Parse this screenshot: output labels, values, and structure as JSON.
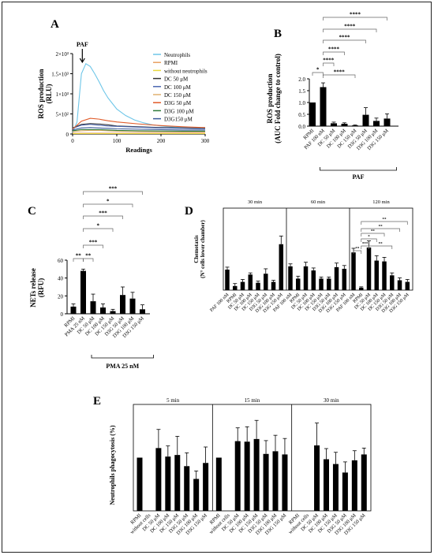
{
  "chart_data": [
    {
      "panel": "A",
      "type": "line",
      "ylabel": "ROS production\n(RLU)",
      "xlabel": "Readings",
      "xlim": [
        0,
        300
      ],
      "ylim": [
        0,
        2000
      ],
      "xticks": [
        0,
        100,
        200,
        300
      ],
      "yticks": [
        {
          "v": 0,
          "t": "0"
        },
        {
          "v": 500,
          "t": "5×10²"
        },
        {
          "v": 1000,
          "t": "1×10³"
        },
        {
          "v": 1500,
          "t": "1.5×10³"
        },
        {
          "v": 2000,
          "t": "2×10³"
        }
      ],
      "annotation": "PAF",
      "legend_position": "right",
      "series": [
        {
          "name": "Neutrophils",
          "color": "#6ec6e8",
          "x": [
            0,
            10,
            20,
            30,
            40,
            50,
            60,
            70,
            80,
            90,
            100,
            120,
            140,
            160,
            180,
            200,
            220,
            240,
            260,
            280,
            300
          ],
          "y": [
            40,
            300,
            1500,
            1750,
            1680,
            1500,
            1300,
            1080,
            900,
            760,
            620,
            460,
            350,
            280,
            230,
            200,
            180,
            165,
            160,
            155,
            150
          ]
        },
        {
          "name": "RPMI",
          "color": "#e8a060",
          "x": [
            0,
            100,
            200,
            300
          ],
          "y": [
            20,
            20,
            20,
            20
          ]
        },
        {
          "name": "without neutrophils",
          "color": "#e8d840",
          "x": [
            0,
            100,
            200,
            300
          ],
          "y": [
            10,
            10,
            10,
            10
          ]
        },
        {
          "name": "DC 50 μM",
          "color": "#333333",
          "x": [
            0,
            20,
            40,
            60,
            80,
            100,
            150,
            200,
            250,
            300
          ],
          "y": [
            150,
            240,
            260,
            250,
            230,
            200,
            180,
            160,
            150,
            140
          ]
        },
        {
          "name": "DC 100 μM",
          "color": "#4a66b0",
          "x": [
            0,
            20,
            40,
            60,
            80,
            100,
            150,
            200,
            250,
            300
          ],
          "y": [
            140,
            220,
            240,
            220,
            200,
            190,
            170,
            150,
            140,
            130
          ]
        },
        {
          "name": "DC 150 μM",
          "color": "#e0b070",
          "x": [
            0,
            20,
            40,
            60,
            80,
            100,
            150,
            200,
            250,
            300
          ],
          "y": [
            60,
            80,
            90,
            90,
            80,
            70,
            60,
            55,
            50,
            50
          ]
        },
        {
          "name": "D3G 50 μM",
          "color": "#e05a28",
          "x": [
            0,
            20,
            40,
            60,
            80,
            100,
            150,
            200,
            250,
            300
          ],
          "y": [
            120,
            320,
            390,
            370,
            330,
            300,
            250,
            210,
            180,
            160
          ]
        },
        {
          "name": "D3G 100 μM",
          "color": "#2e7a3a",
          "x": [
            0,
            20,
            40,
            60,
            80,
            100,
            150,
            200,
            250,
            300
          ],
          "y": [
            80,
            110,
            110,
            110,
            100,
            90,
            80,
            75,
            70,
            70
          ]
        },
        {
          "name": "D3G150 μM",
          "color": "#3a5a9a",
          "x": [
            0,
            20,
            40,
            60,
            80,
            100,
            150,
            200,
            250,
            300
          ],
          "y": [
            100,
            150,
            160,
            150,
            140,
            130,
            120,
            110,
            100,
            100
          ]
        }
      ]
    },
    {
      "panel": "B",
      "type": "bar",
      "ylabel": "ROS production\n(AUC Fold change to control)",
      "ylim": [
        0,
        2.0
      ],
      "yticks": [
        "0.0",
        "0.5",
        "1.0",
        "1.5",
        "2.0"
      ],
      "categories": [
        "RPMI",
        "PAF 100 nM",
        "DC 50 μM",
        "DC 100 μM",
        "DC 150 μM",
        "D3G 50 μM",
        "D3G 100 μM",
        "D3G 150 μM"
      ],
      "values": [
        1.0,
        1.65,
        0.12,
        0.1,
        0.03,
        0.48,
        0.22,
        0.32
      ],
      "errors": [
        0.0,
        0.18,
        0.05,
        0.04,
        0.02,
        0.3,
        0.12,
        0.2
      ],
      "group_label": "PAF",
      "significance": [
        "*",
        "****",
        "****",
        "****",
        "****",
        "****",
        "****"
      ]
    },
    {
      "panel": "C",
      "type": "bar",
      "ylabel": "NETs release\n(RFU)",
      "ylim": [
        0,
        60
      ],
      "yticks": [
        "0",
        "20",
        "40",
        "60"
      ],
      "categories": [
        "RPMI",
        "PMA 25 nM",
        "DC 50 μM",
        "DC 100 μM",
        "DC 150 μM",
        "D3G 50 μM",
        "D3G 100 μM",
        "D3G 150 μM"
      ],
      "values": [
        8,
        48,
        14,
        7,
        3,
        21,
        17,
        5
      ],
      "errors": [
        3,
        2,
        8,
        4,
        2,
        9,
        7,
        5
      ],
      "group_label": "PMA 25 nM",
      "significance": [
        "**",
        "**",
        "***",
        "*",
        "***",
        "*",
        "***"
      ]
    },
    {
      "panel": "D",
      "type": "bar",
      "ylabel": "Chemotaxis\n(N° cells lower chamber)",
      "ylim": [
        0,
        100
      ],
      "groups": [
        "30 min",
        "60 min",
        "120 min"
      ],
      "categories": [
        "PAF 100 nM",
        "RPMI",
        "DC 50 μM",
        "DC 100 μM",
        "DC 150 μM",
        "D3G 50 μM",
        "D3G 100 μM",
        "D3G 150 μM"
      ],
      "series": [
        {
          "group": "30 min",
          "values": [
            25,
            5,
            10,
            19,
            9,
            20,
            10,
            56
          ],
          "errors": [
            3,
            3,
            3,
            2,
            2,
            6,
            2,
            10
          ]
        },
        {
          "group": "60 min",
          "values": [
            29,
            14,
            29,
            24,
            14,
            14,
            28,
            26
          ],
          "errors": [
            3,
            3,
            5,
            3,
            2,
            2,
            5,
            4
          ]
        },
        {
          "group": "120 min",
          "values": [
            46,
            3,
            52,
            36,
            35,
            18,
            12,
            10
          ],
          "errors": [
            5,
            1,
            8,
            6,
            5,
            3,
            3,
            3
          ]
        }
      ],
      "significance": [
        "**",
        "***",
        "*",
        "**",
        "**",
        "**",
        "**"
      ]
    },
    {
      "panel": "E",
      "type": "bar",
      "ylabel": "Neutrophils phagocytosis (%)",
      "ylim": [
        0,
        200
      ],
      "groups": [
        "5 min",
        "15 min",
        "30 min"
      ],
      "categories": [
        "RPMI",
        "without cells",
        "DC 50 μM",
        "DC 100 μM",
        "DC 150 μM",
        "D3G 50 μM",
        "D3G 100 μM",
        "D3G 150 μM"
      ],
      "series": [
        {
          "group": "5 min",
          "values": [
            100,
            0,
            118,
            102,
            105,
            84,
            60,
            90
          ],
          "errors": [
            0,
            0,
            35,
            20,
            35,
            25,
            15,
            30
          ]
        },
        {
          "group": "15 min",
          "values": [
            100,
            0,
            131,
            130,
            135,
            107,
            112,
            106
          ],
          "errors": [
            0,
            0,
            25,
            28,
            35,
            25,
            30,
            30
          ]
        },
        {
          "group": "30 min",
          "values": [
            0,
            0,
            123,
            97,
            88,
            72,
            95,
            106
          ],
          "errors": [
            0,
            0,
            42,
            20,
            22,
            20,
            18,
            12
          ]
        }
      ]
    }
  ]
}
